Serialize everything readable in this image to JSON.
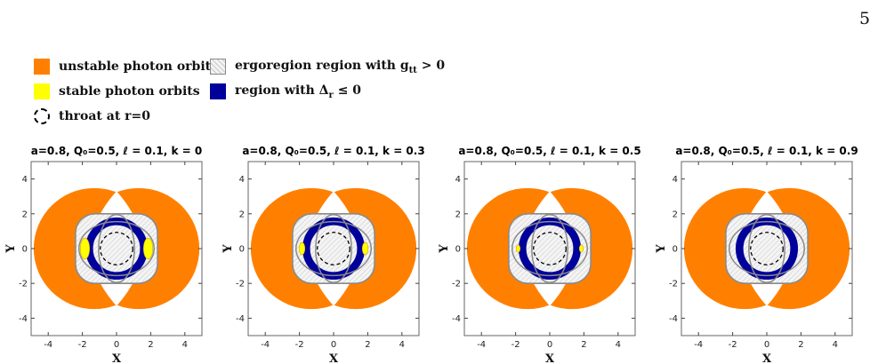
{
  "page_number": "5",
  "legend": {
    "unstable": "unstable photon orbits",
    "stable": "stable photon orbits",
    "throat": "throat at r=0",
    "ergo_prefix": "ergoregion region with g",
    "ergo_sub": "tt",
    "ergo_suffix": " > 0",
    "delta_prefix": "region with Δ",
    "delta_sub": "r",
    "delta_suffix": " ≤ 0"
  },
  "colors": {
    "unstable": "#ff8000",
    "stable": "#ffff00",
    "delta": "#00009a",
    "ergo_outline": "#8a8a8a",
    "frame": "#666666"
  },
  "axes": {
    "x_label": "X",
    "y_label": "Y",
    "xlim": [
      -5,
      5
    ],
    "ylim": [
      -5,
      5
    ],
    "x_ticks": [
      "-4",
      "-2",
      "0",
      "2",
      "4"
    ],
    "y_ticks": [
      "4",
      "2",
      "0",
      "-2",
      "-4"
    ]
  },
  "panels": [
    {
      "title": "a=0.8, Q₀=0.5, ℓ = 0.1, k = 0",
      "k": 0
    },
    {
      "title": "a=0.8, Q₀=0.5, ℓ = 0.1, k = 0.3",
      "k": 0.3
    },
    {
      "title": "a=0.8, Q₀=0.5, ℓ = 0.1, k = 0.5",
      "k": 0.5
    },
    {
      "title": "a=0.8, Q₀=0.5, ℓ = 0.1, k = 0.9",
      "k": 0.9
    }
  ],
  "stable_region_size": [
    1.0,
    0.55,
    0.3,
    0.0
  ]
}
